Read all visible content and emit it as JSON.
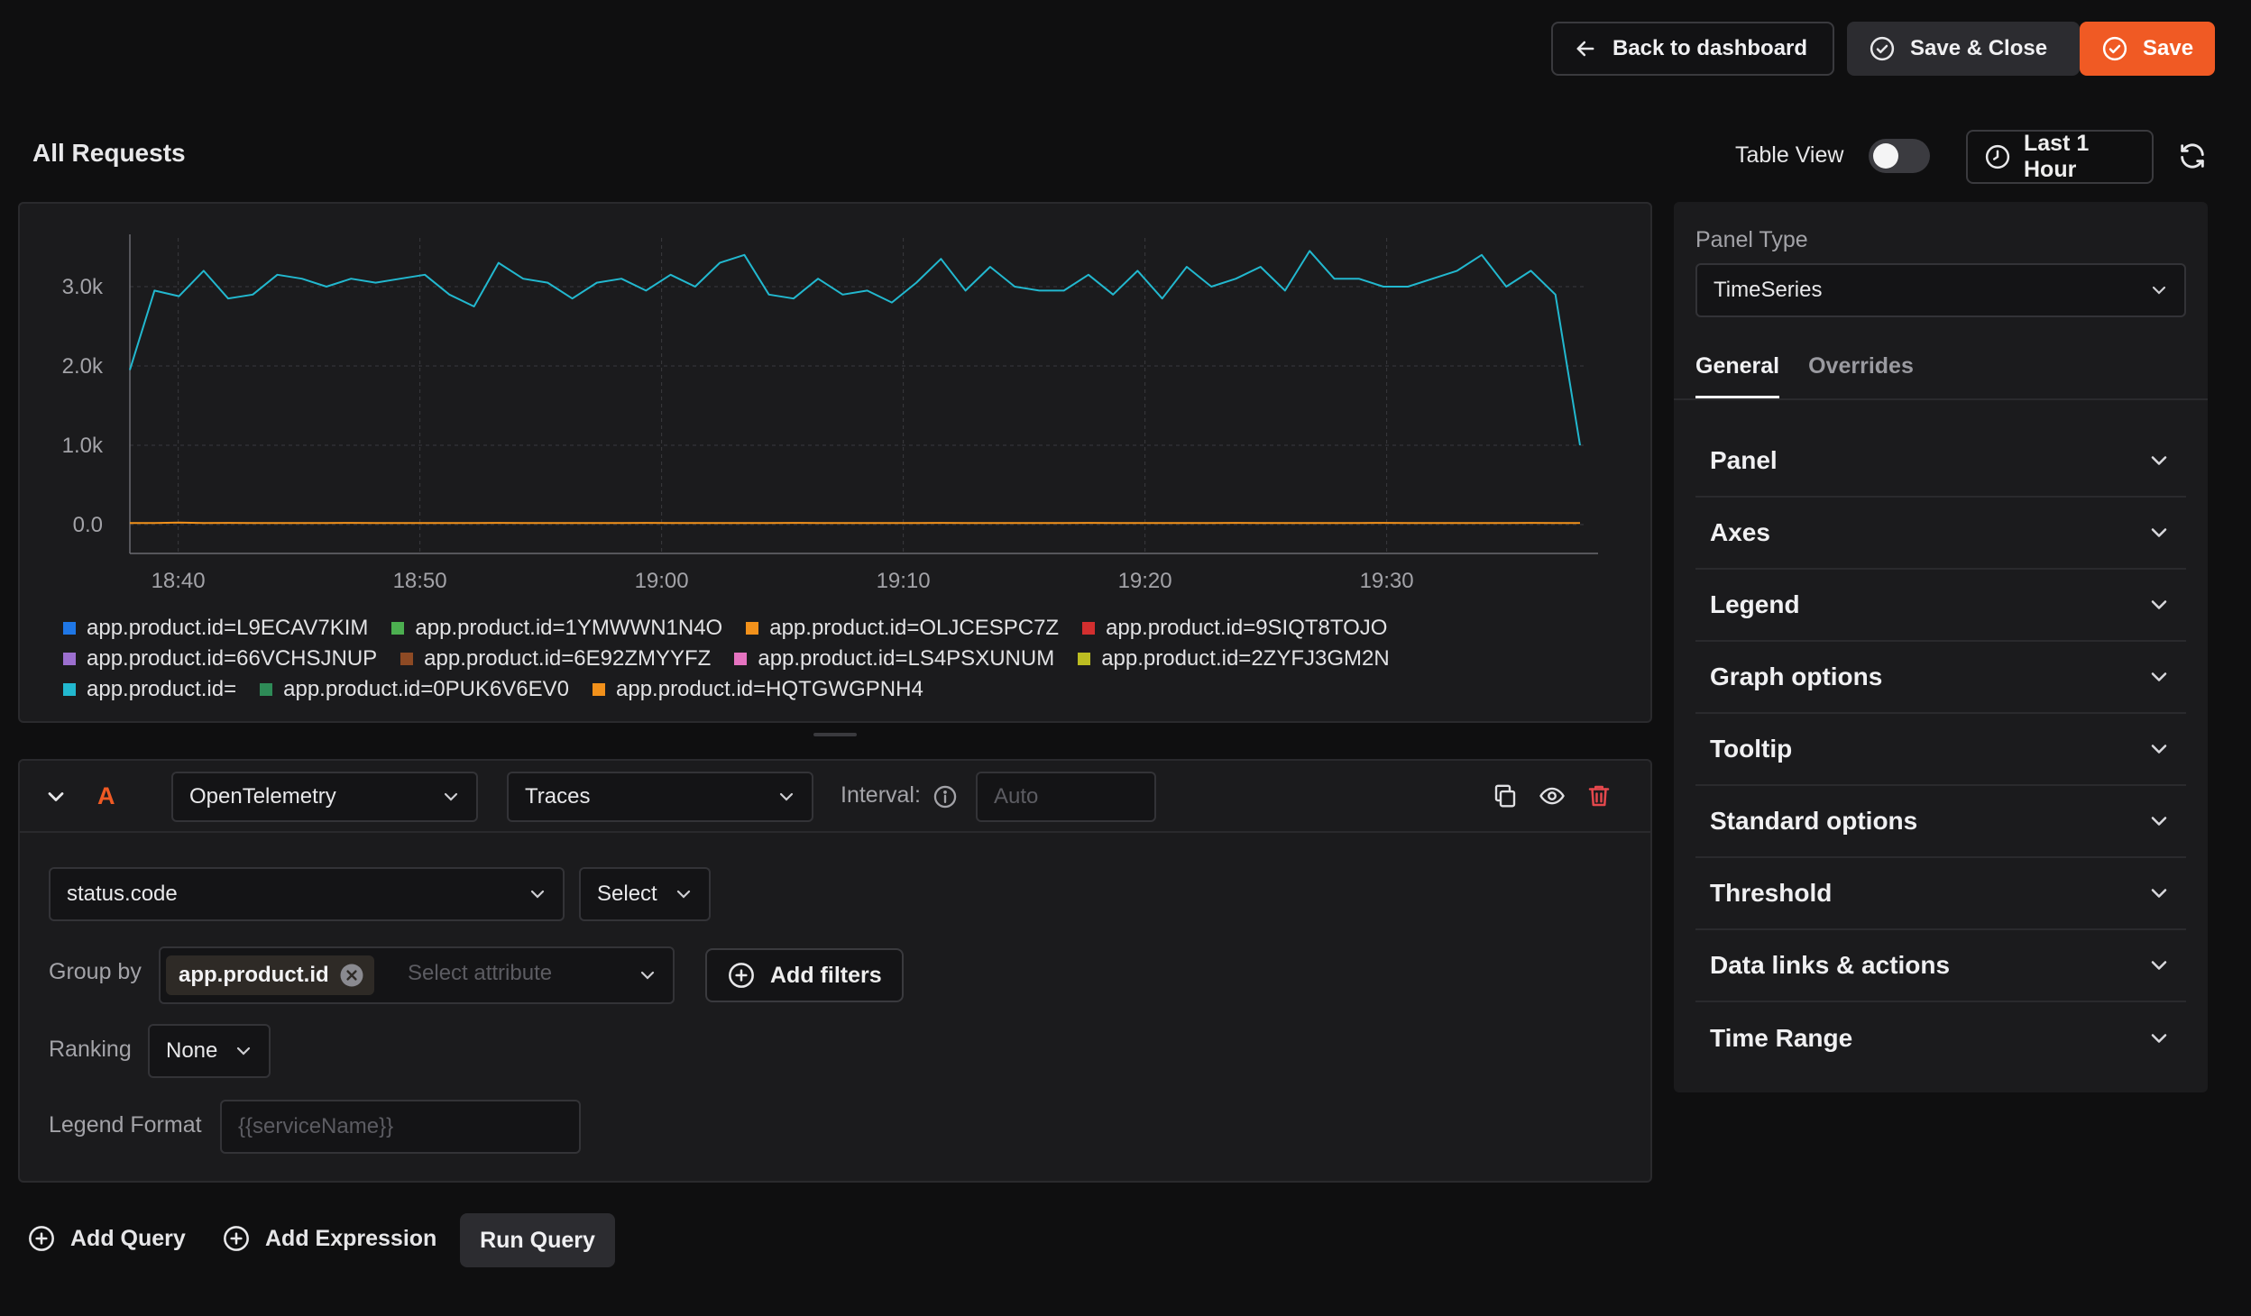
{
  "header": {
    "back_label": "Back to dashboard",
    "save_close_label": "Save & Close",
    "save_label": "Save"
  },
  "panel": {
    "title": "All Requests",
    "table_view_label": "Table View",
    "table_view_on": false,
    "time_range": "Last 1 Hour"
  },
  "chart_data": {
    "type": "line",
    "title": "",
    "xlabel": "",
    "ylabel": "",
    "ylim": [
      0,
      3500
    ],
    "yticks": [
      "0.0",
      "1.0k",
      "2.0k",
      "3.0k"
    ],
    "xticks": [
      "18:40",
      "18:50",
      "19:00",
      "19:10",
      "19:20",
      "19:30"
    ],
    "x_start_minute": 38,
    "x_end_minute": 98,
    "grid": true,
    "legend_position": "bottom",
    "series": [
      {
        "name": "app.product.id=",
        "color": "#22b8cf",
        "values": [
          1950,
          2950,
          2880,
          3200,
          2850,
          2900,
          3150,
          3100,
          3000,
          3100,
          3050,
          3100,
          3150,
          2900,
          2750,
          3300,
          3100,
          3050,
          2850,
          3050,
          3100,
          2950,
          3150,
          3000,
          3300,
          3400,
          2900,
          2850,
          3100,
          2900,
          2950,
          2800,
          3050,
          3350,
          2950,
          3250,
          3000,
          2950,
          2950,
          3150,
          2900,
          3200,
          2850,
          3250,
          3000,
          3100,
          3250,
          2950,
          3450,
          3100,
          3100,
          3000,
          3000,
          3100,
          3200,
          3400,
          3000,
          3200,
          2900,
          1000
        ]
      },
      {
        "name": "app.product.id=HQTGWGPNH4",
        "color": "#f2911b",
        "values": [
          20,
          20,
          25,
          20,
          22,
          20,
          20,
          21,
          20,
          22,
          20,
          20,
          21,
          20,
          20,
          22,
          20,
          20,
          21,
          20,
          20,
          22,
          20,
          20,
          21,
          20,
          20,
          22,
          20,
          20,
          21,
          20,
          20,
          22,
          20,
          20,
          21,
          20,
          20,
          22,
          20,
          20,
          21,
          20,
          20,
          22,
          20,
          20,
          21,
          20,
          20,
          22,
          20,
          20,
          21,
          20,
          20,
          22,
          20,
          20
        ]
      }
    ],
    "legend": [
      [
        {
          "label": "app.product.id=L9ECAV7KIM",
          "color": "#1f77e6"
        },
        {
          "label": "app.product.id=1YMWWN1N4O",
          "color": "#4caf50"
        },
        {
          "label": "app.product.id=OLJCESPC7Z",
          "color": "#f2911b"
        },
        {
          "label": "app.product.id=9SIQT8TOJO",
          "color": "#d32f2f"
        }
      ],
      [
        {
          "label": "app.product.id=66VCHSJNUP",
          "color": "#9c6fcf"
        },
        {
          "label": "app.product.id=6E92ZMYYFZ",
          "color": "#8d4a24"
        },
        {
          "label": "app.product.id=LS4PSXUNUM",
          "color": "#e573c0"
        },
        {
          "label": "app.product.id=2ZYFJ3GM2N",
          "color": "#bcbd22"
        }
      ],
      [
        {
          "label": "app.product.id=",
          "color": "#22b8cf"
        },
        {
          "label": "app.product.id=0PUK6V6EV0",
          "color": "#2e8b57"
        },
        {
          "label": "app.product.id=HQTGWGPNH4",
          "color": "#f2911b"
        }
      ]
    ]
  },
  "query": {
    "letter": "A",
    "datasource": "OpenTelemetry",
    "signal": "Traces",
    "interval_label": "Interval:",
    "interval_placeholder": "Auto",
    "metric": "status.code",
    "aggregate": "Select",
    "group_by_label": "Group by",
    "group_by_chip": "app.product.id",
    "group_by_placeholder": "Select attribute",
    "add_filters_label": "Add filters",
    "ranking_label": "Ranking",
    "ranking_value": "None",
    "legend_format_label": "Legend Format",
    "legend_format_placeholder": "{{serviceName}}"
  },
  "footer": {
    "add_query": "Add Query",
    "add_expression": "Add Expression",
    "run_query": "Run Query"
  },
  "settings": {
    "panel_type_label": "Panel Type",
    "panel_type_value": "TimeSeries",
    "tabs": [
      "General",
      "Overrides"
    ],
    "sections": [
      "Panel",
      "Axes",
      "Legend",
      "Graph options",
      "Tooltip",
      "Standard options",
      "Threshold",
      "Data links & actions",
      "Time Range"
    ]
  },
  "colors": {
    "accent": "#f05a24",
    "danger": "#e5484d"
  }
}
